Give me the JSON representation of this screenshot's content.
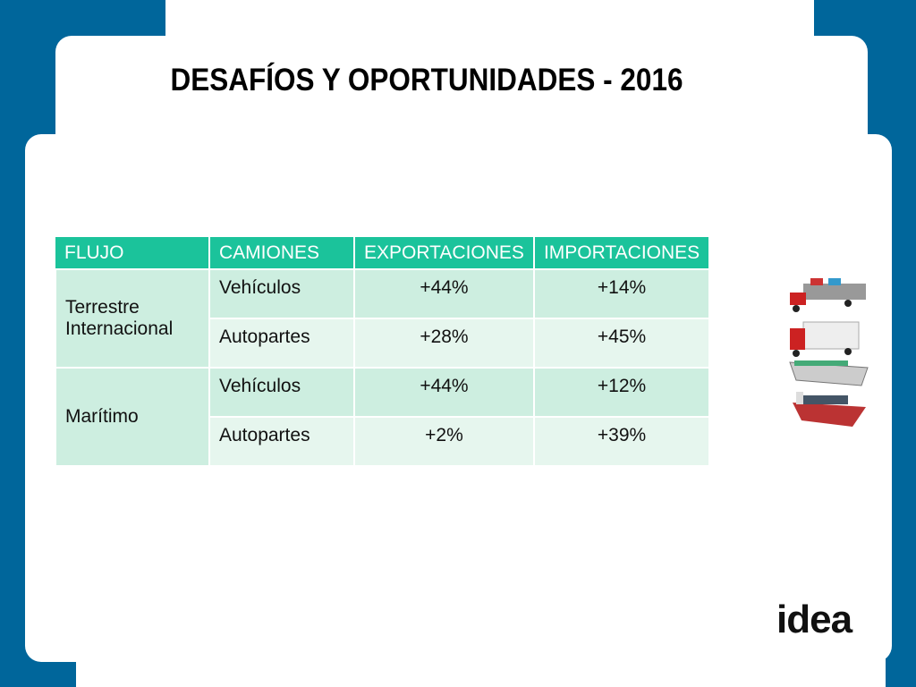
{
  "title": "DESAFÍOS Y OPORTUNIDADES - 2016",
  "table": {
    "header": [
      "FLUJO",
      "CAMIONES",
      "EXPORTACIONES",
      "IMPORTACIONES"
    ],
    "groups": [
      {
        "flujo": "Terrestre Internacional",
        "rows": [
          [
            "Vehículos",
            "+44%",
            "+14%"
          ],
          [
            "Autopartes",
            "+28%",
            "+45%"
          ]
        ]
      },
      {
        "flujo": "Marítimo",
        "rows": [
          [
            "Vehículos",
            "+44%",
            "+12%"
          ],
          [
            "Autopartes",
            "+2%",
            "+39%"
          ]
        ]
      }
    ]
  },
  "logo": "idea"
}
